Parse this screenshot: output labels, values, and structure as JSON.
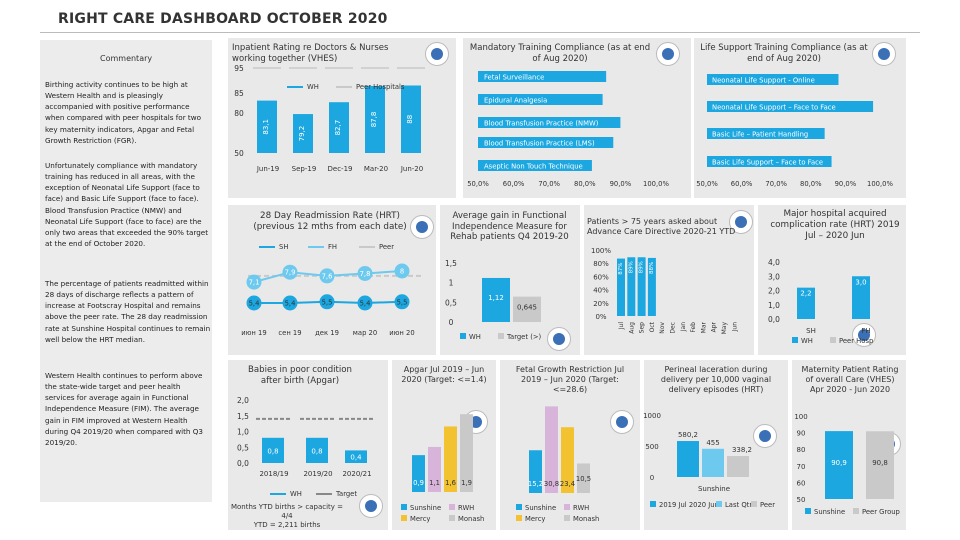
{
  "page_title": "RIGHT CARE DASHBOARD OCTOBER 2020",
  "colors": {
    "blue": "#1ca7e0",
    "lightblue": "#6ec9ef",
    "pink": "#d8b4da",
    "yellow": "#f2c230",
    "grey": "#c9c9c9",
    "dark": "#333333",
    "white": "#ffffff"
  },
  "icons": {
    "logo": "western-health-logo",
    "panel_logo": "circular-logo-icon"
  },
  "commentary": {
    "title": "Commentary",
    "p1": "Birthing activity continues to be high at Western Health and is pleasingly accompanied with positive performance when compared with peer hospitals for two key maternity indicators, Apgar and Fetal Growth Restriction (FGR).",
    "p2": "Unfortunately compliance with mandatory training has reduced in all areas, with the exception of Neonatal Life Support (face to face) and Basic Life Support (face to face). Blood Transfusion Practice (NMW) and Neonatal Life Support (face to face) are the only two areas that exceeded the 90% target at the end of October 2020.",
    "p3": "The percentage of patients readmitted within 28 days of discharge reflects a pattern of increase at Footscray Hospital and remains above the peer rate. The 28 day readmission rate at Sunshine Hospital continues to remain well below the HRT median.",
    "p4": "Western Health continues to perform above the state-wide target and peer health services for average again in Functional Independence Measure (FIM). The average gain in FIM improved at Western Health during Q4 2019/20 when compared with Q3 2019/20."
  },
  "chart_data": [
    {
      "id": "vhes",
      "type": "bar",
      "title": "Inpatient Rating re Doctors & Nurses working together (VHES)",
      "categories": [
        "Jun-19",
        "Sep-19",
        "Dec-19",
        "Mar-20",
        "Jun-20"
      ],
      "series": [
        {
          "name": "WH",
          "values": [
            83.1,
            79.2,
            82.7,
            87.8,
            88
          ]
        },
        {
          "name": "Peer Hospitals",
          "values": [
            95,
            95,
            95,
            95,
            95
          ]
        }
      ],
      "yticks": [
        "95",
        "85",
        "80",
        "50"
      ],
      "data_labels": [
        "83,1",
        "79,2",
        "82,7",
        "87,8",
        "88"
      ]
    },
    {
      "id": "mand",
      "type": "bar",
      "title": "Mandatory Training Compliance (as at end of Aug 2020)",
      "categories": [
        "Fetal Surveillance",
        "Epidural Analgesia",
        "Blood Transfusion Practice (NMW)",
        "Blood Transfusion Practice (LMS)",
        "Aseptic Non Touch Technique"
      ],
      "values": [
        86,
        85,
        90,
        88,
        82
      ],
      "xticks": [
        "50,0%",
        "60,0%",
        "70,0%",
        "80,0%",
        "90,0%",
        "100,0%"
      ],
      "xlim": [
        50,
        100
      ]
    },
    {
      "id": "life",
      "type": "bar",
      "title": "Life Support Training Compliance (as at end of Aug 2020)",
      "categories": [
        "Neonatal Life Support - Online",
        "Neonatal Life Support – Face to Face",
        "Basic Life – Patient Handling",
        "Basic Life Support – Face to Face"
      ],
      "values": [
        88,
        98,
        84,
        86
      ],
      "xticks": [
        "50,0%",
        "60,0%",
        "70,0%",
        "80,0%",
        "90,0%",
        "100,0%"
      ],
      "xlim": [
        50,
        100
      ]
    },
    {
      "id": "readm",
      "type": "line",
      "title": "28 Day Readmission Rate (HRT) (previous 12 mths from each date)",
      "categories": [
        "июн 19",
        "сен 19",
        "дек 19",
        "мар 20",
        "июн 20"
      ],
      "series": [
        {
          "name": "SH",
          "values": [
            5.4,
            5.4,
            5.5,
            5.4,
            5.5
          ]
        },
        {
          "name": "FH",
          "values": [
            7.1,
            7.9,
            7.6,
            7.8,
            8
          ]
        },
        {
          "name": "Peer",
          "values": [
            7.6,
            7.6,
            7.6,
            7.6,
            7.6
          ]
        }
      ],
      "data_labels": {
        "SH": [
          "5,4",
          "5,4",
          "5,5",
          "5,4",
          "5,5"
        ],
        "FH": [
          "7,1",
          "7,9",
          "7,6",
          "7,8",
          "8"
        ]
      }
    },
    {
      "id": "fim",
      "type": "bar",
      "title": "Average gain in Functional Independence Measure for Rehab patients Q4 2019-20",
      "categories": [
        "WH",
        "Target (>)"
      ],
      "values": [
        1.12,
        0.645
      ],
      "labels": [
        "1,12",
        "0,645"
      ],
      "yticks": [
        "1,5",
        "1",
        "0,5",
        "0"
      ],
      "ylim": [
        0,
        1.5
      ]
    },
    {
      "id": "acp",
      "type": "bar",
      "title": "Patients > 75 years asked about Advance Care Directive 2020-21 YTD",
      "categories": [
        "Jul",
        "Aug",
        "Sep",
        "Oct",
        "Nov",
        "Dec",
        "Jan",
        "Feb",
        "Mar",
        "Apr",
        "May",
        "Jun"
      ],
      "values": [
        87,
        89,
        89,
        88,
        null,
        null,
        null,
        null,
        null,
        null,
        null,
        null
      ],
      "labels": [
        "87%",
        "89%",
        "89%",
        "88%"
      ],
      "yticks": [
        "100%",
        "80%",
        "60%",
        "40%",
        "20%",
        "0%"
      ],
      "ylim": [
        0,
        100
      ]
    },
    {
      "id": "complic",
      "type": "bar",
      "title": "Major hospital acquired complication rate (HRT) 2019 Jul – 2020 Jun",
      "categories": [
        "SH",
        "FH"
      ],
      "series": [
        {
          "name": "WH",
          "values": [
            2.2,
            3.0
          ]
        },
        {
          "name": "Peer Hosp",
          "values": [
            null,
            null
          ]
        }
      ],
      "labels": [
        "2,2",
        "3,0"
      ],
      "yticks": [
        "4,0",
        "3,0",
        "2,0",
        "1,0",
        "0,0"
      ],
      "ylim": [
        0,
        4
      ]
    },
    {
      "id": "apgar_poor",
      "type": "bar",
      "title": "Babies in poor condition after birth (Apgar)",
      "categories": [
        "2018/19",
        "2019/20",
        "2020/21"
      ],
      "series": [
        {
          "name": "WH",
          "values": [
            0.8,
            0.8,
            0.4
          ]
        },
        {
          "name": "Target",
          "values": [
            1.4,
            1.4,
            1.4
          ]
        }
      ],
      "labels": [
        "0,8",
        "0,8",
        "0,4"
      ],
      "yticks": [
        "2,0",
        "1,5",
        "1,0",
        "0,5",
        "0,0"
      ],
      "ylim": [
        0,
        2
      ],
      "footnote": "Months YTD births > capacity = 4/4\nYTD = 2,211 births"
    },
    {
      "id": "apgar",
      "type": "bar",
      "title": "Apgar Jul 2019 – Jun 2020 (Target: <=1.4)",
      "categories": [
        "Sunshine",
        "RWH",
        "Mercy",
        "Monash"
      ],
      "values": [
        0.9,
        1.1,
        1.6,
        1.9
      ],
      "labels": [
        "0,9",
        "1,1",
        "1,6",
        "1,9"
      ]
    },
    {
      "id": "fgr",
      "type": "bar",
      "title": "Fetal Growth Restriction Jul 2019 – Jun 2020 (Target: <=28.6)",
      "categories": [
        "Sunshine",
        "RWH",
        "Mercy",
        "Monash"
      ],
      "values": [
        15.2,
        30.8,
        23.4,
        10.5
      ],
      "labels": [
        "15,2",
        "30,8",
        "23,4",
        "10,5"
      ]
    },
    {
      "id": "perineal",
      "type": "bar",
      "title": "Perineal laceration during delivery per 10,000 vaginal delivery episodes (HRT)",
      "categories": [
        "Sunshine"
      ],
      "series": [
        {
          "name": "2019 Jul 2020 Jun",
          "values": [
            580.2
          ]
        },
        {
          "name": "Last Qtr",
          "values": [
            455
          ]
        },
        {
          "name": "Peer",
          "values": [
            338.2
          ]
        }
      ],
      "labels": [
        "580,2",
        "455",
        "338,2"
      ],
      "yticks": [
        "1000",
        "500",
        "0"
      ],
      "ylim": [
        0,
        1000
      ]
    },
    {
      "id": "vhes_mat",
      "type": "bar",
      "title": "Maternity Patient Rating of overall Care (VHES) Apr 2020 - Jun 2020",
      "categories": [
        "Sunshine",
        "Peer Group"
      ],
      "values": [
        90.9,
        90.8
      ],
      "labels": [
        "90,9",
        "90,8"
      ],
      "yticks": [
        "100",
        "90",
        "80",
        "70",
        "60",
        "50"
      ],
      "ylim": [
        50,
        100
      ]
    }
  ]
}
